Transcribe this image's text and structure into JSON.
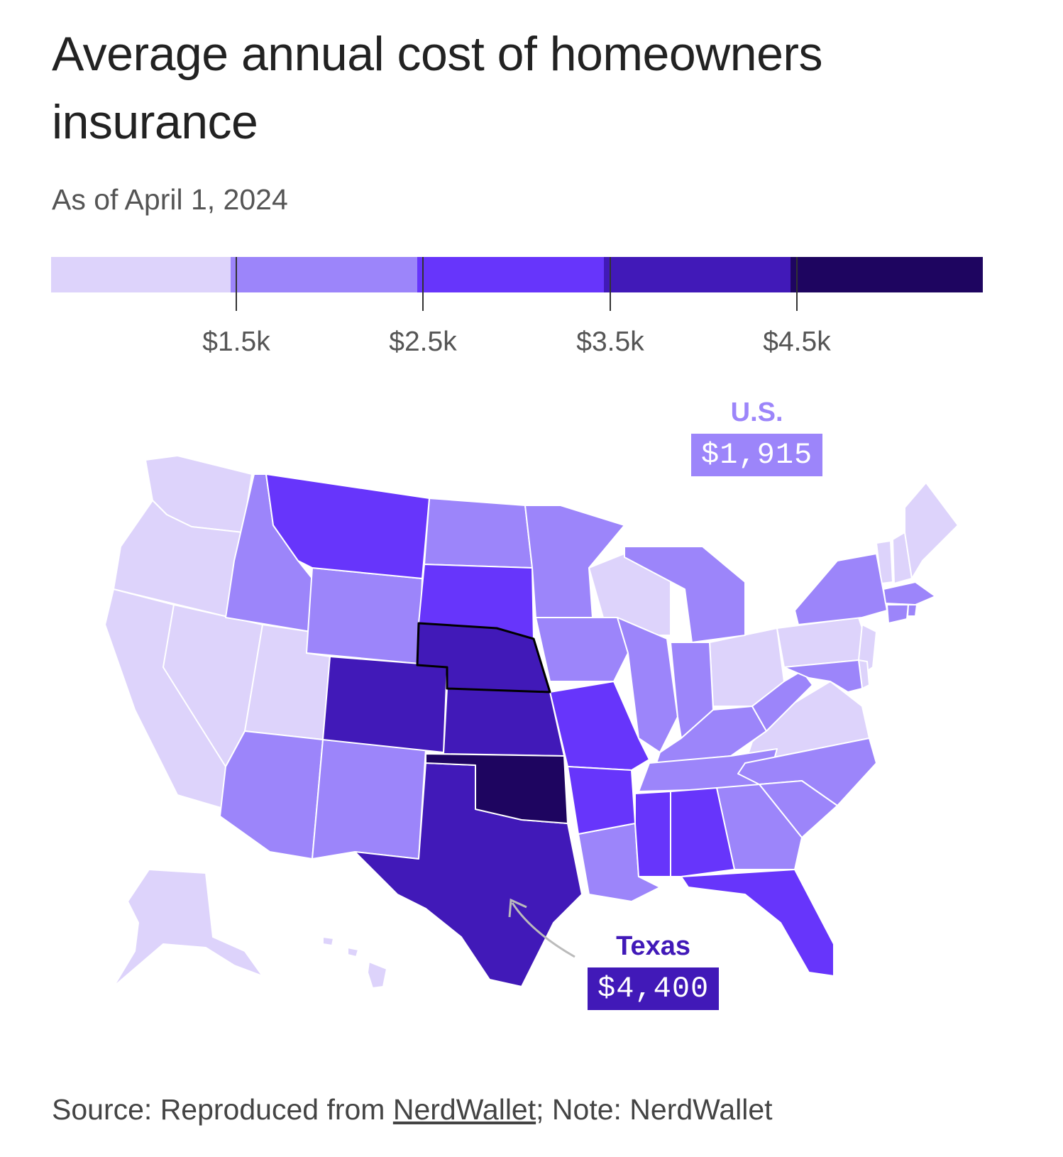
{
  "title": "Average annual cost of homeowners insurance",
  "subtitle": "As of April 1, 2024",
  "legend": {
    "bins": [
      {
        "color": "#ddd3fb"
      },
      {
        "color": "#9c85fa"
      },
      {
        "color": "#6735fb"
      },
      {
        "color": "#4119b8"
      },
      {
        "color": "#1e0560"
      }
    ],
    "tick_labels": [
      "$1.5k",
      "$2.5k",
      "$3.5k",
      "$4.5k"
    ]
  },
  "callouts": {
    "us": {
      "label": "U.S.",
      "value": "$1,915",
      "color": "#9c85fa"
    },
    "texas": {
      "label": "Texas",
      "value": "$4,400",
      "color": "#4119b8"
    }
  },
  "source": {
    "prefix": "Source: Reproduced from ",
    "link": "NerdWallet",
    "suffix": "; Note: NerdWallet"
  },
  "chart_data": {
    "type": "choropleth",
    "unit": "USD per year",
    "bins": [
      "< $1.5k",
      "$1.5k–$2.5k",
      "$2.5k–$3.5k",
      "$3.5k–$4.5k",
      "> $4.5k"
    ],
    "states": {
      "WA": 0,
      "OR": 0,
      "CA": 0,
      "NV": 0,
      "UT": 0,
      "AK": 0,
      "HI": 0,
      "WI": 0,
      "OH": 0,
      "PA": 0,
      "VA": 0,
      "NJ": 0,
      "VT": 0,
      "NH": 0,
      "ME": 0,
      "DE": 0,
      "ID": 1,
      "WY": 1,
      "ND": 1,
      "MN": 1,
      "IA": 1,
      "AZ": 1,
      "NM": 1,
      "IL": 1,
      "IN": 1,
      "MI": 1,
      "KY": 1,
      "TN": 1,
      "WV": 1,
      "NC": 1,
      "SC": 1,
      "GA": 1,
      "LA": 1,
      "NY": 1,
      "MA": 1,
      "CT": 1,
      "RI": 1,
      "MD": 1,
      "MT": 2,
      "SD": 2,
      "MO": 2,
      "AR": 2,
      "MS": 2,
      "AL": 2,
      "FL": 2,
      "CO": 3,
      "NE": 3,
      "KS": 3,
      "TX": 3,
      "OK": 4
    },
    "us_average": 1915,
    "texas": 4400
  }
}
